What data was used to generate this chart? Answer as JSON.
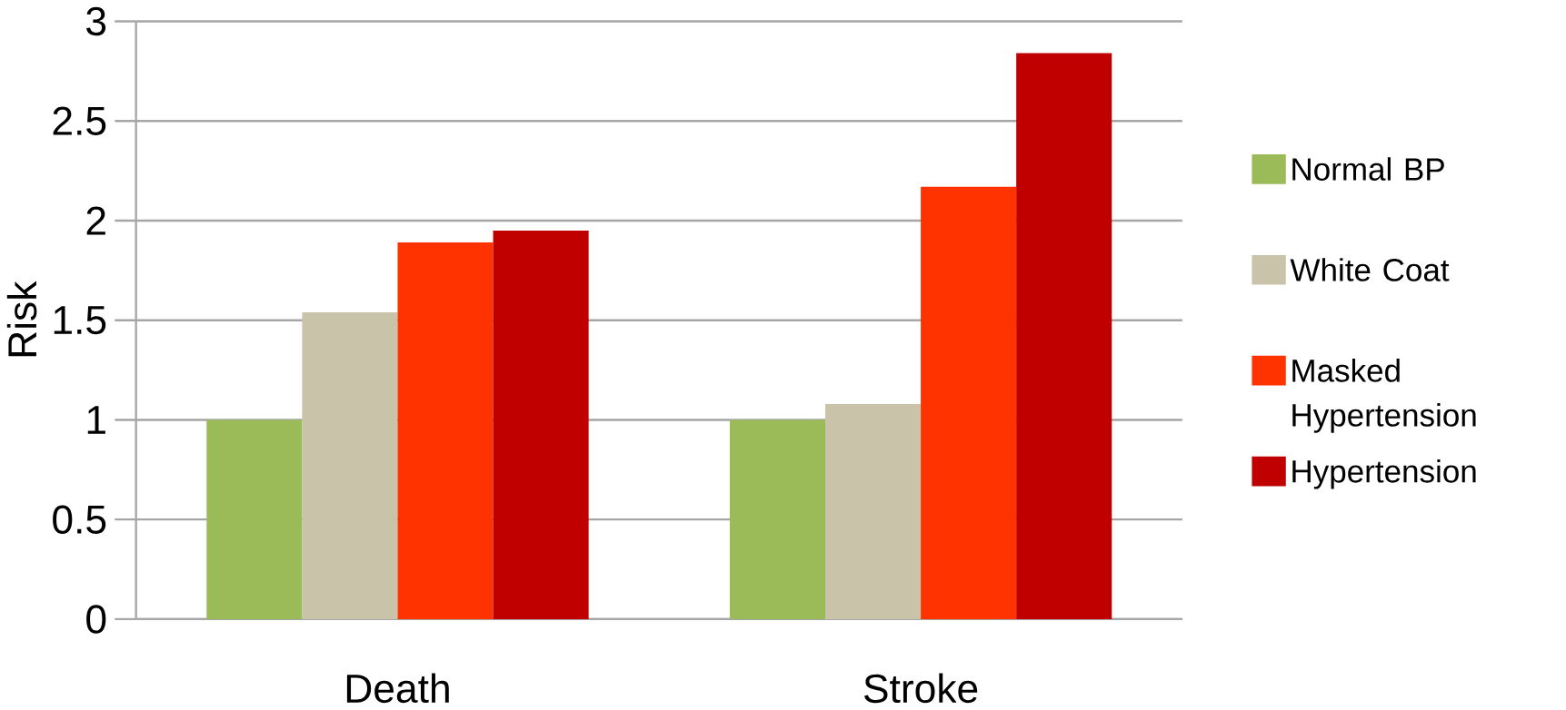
{
  "chart_data": {
    "type": "bar",
    "ylabel": "Risk",
    "categories": [
      "Death",
      "Stroke"
    ],
    "series": [
      {
        "name": "Normal BP",
        "color": "#9bbb59",
        "values": [
          1.0,
          1.0
        ]
      },
      {
        "name": "White Coat",
        "color": "#c9c3aa",
        "values": [
          1.54,
          1.08
        ]
      },
      {
        "name": "Masked Hypertension",
        "color": "#ff3300",
        "values": [
          1.89,
          2.17
        ]
      },
      {
        "name": "Hypertension",
        "color": "#c00000",
        "values": [
          1.95,
          2.84
        ]
      }
    ],
    "ylim": [
      0,
      3
    ],
    "yticks": [
      0,
      0.5,
      1,
      1.5,
      2,
      2.5,
      3
    ],
    "grid": "y",
    "legend": "right"
  }
}
